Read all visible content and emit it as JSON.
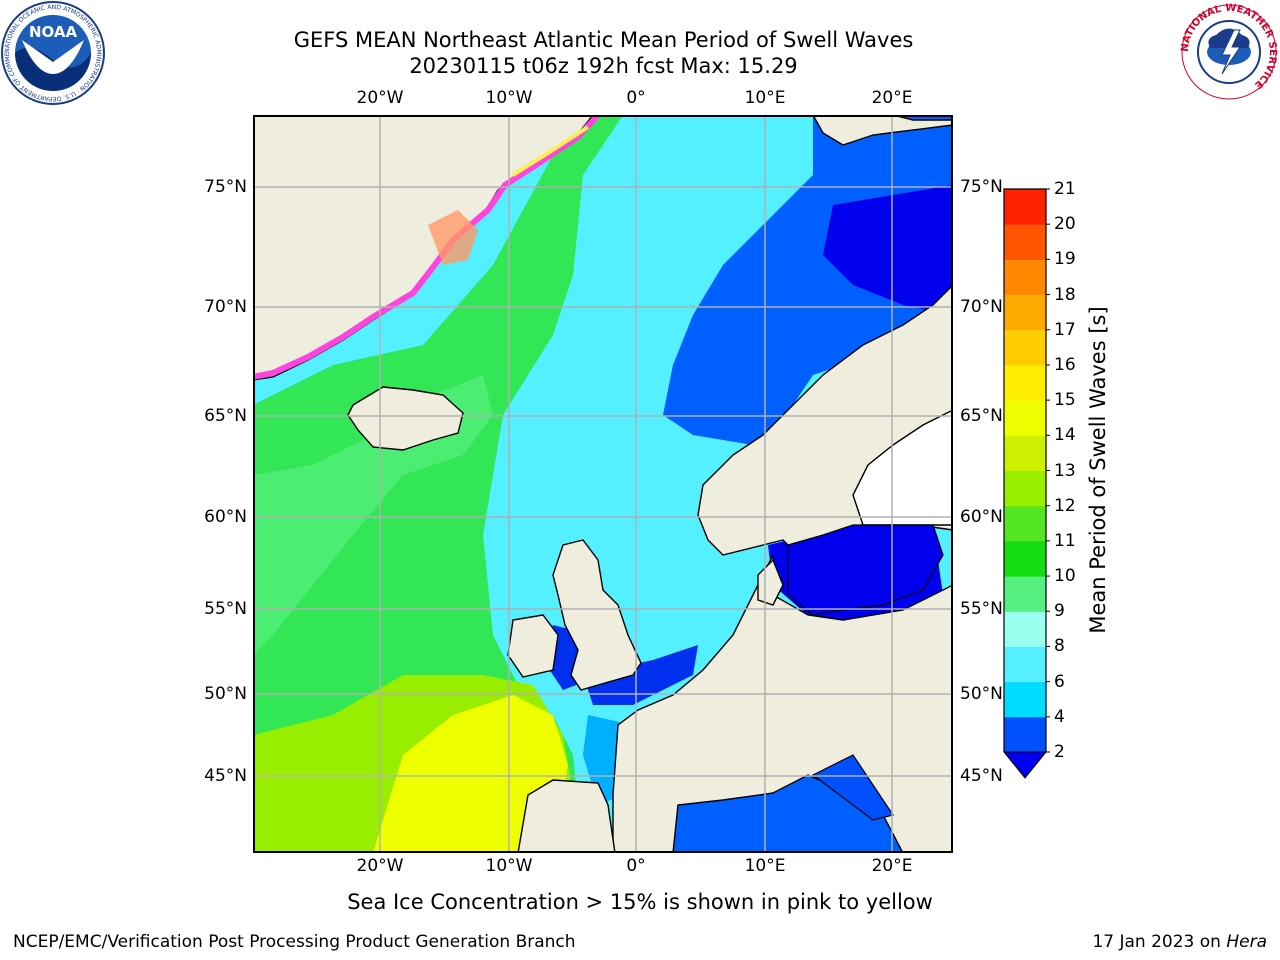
{
  "title": {
    "line1": "GEFS MEAN Northeast Atlantic Mean Period of Swell Waves",
    "line2": "20230115 t06z 192h fcst   Max: 15.29"
  },
  "map": {
    "lon_labels": [
      "20°W",
      "10°W",
      "0°",
      "10°E",
      "20°E"
    ],
    "lat_labels": [
      "75°N",
      "70°N",
      "65°N",
      "60°N",
      "55°N",
      "50°N",
      "45°N"
    ],
    "colors": {
      "land": "#efedde",
      "ice_white": "#ffffff",
      "grid": "#b0b0b0",
      "coast": "#000000",
      "ice_pink": "#ff44dd",
      "ice_yellow": "#ffee55"
    }
  },
  "colorbar": {
    "label": "Mean Period of Swell Waves [s]",
    "ticks": [
      "2",
      "4",
      "6",
      "8",
      "9",
      "10",
      "11",
      "12",
      "13",
      "14",
      "15",
      "16",
      "17",
      "18",
      "19",
      "20",
      "21"
    ],
    "colors": [
      "#0050ff",
      "#00dcff",
      "#55f0ff",
      "#99ffee",
      "#55f080",
      "#11dd11",
      "#55e622",
      "#99ee00",
      "#ccf000",
      "#eeff00",
      "#ffee00",
      "#ffcc00",
      "#ffaa00",
      "#ff8800",
      "#ff5500",
      "#ff2200"
    ],
    "under_color": "#0000ee"
  },
  "caption": "Sea Ice Concentration > 15% is shown in pink to yellow",
  "footer": {
    "left": "NCEP/EMC/Verification Post Processing Product Generation Branch",
    "right_date": "17 Jan 2023 on ",
    "right_host": "Hera"
  },
  "logos": {
    "noaa_text": "NOAA",
    "noaa_ring_text": "NATIONAL OCEANIC AND ATMOSPHERIC ADMINISTRATION · U.S. DEPARTMENT OF COMMERCE",
    "nws_ring_text": "NATIONAL WEATHER SERVICE"
  }
}
